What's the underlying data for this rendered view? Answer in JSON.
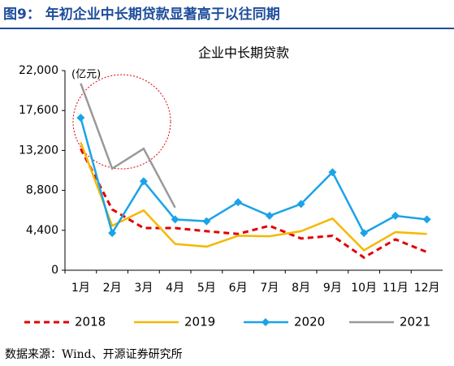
{
  "header": {
    "title": "图9：  年初企业中长期贷款显著高于以往同期"
  },
  "chart_data": {
    "type": "line",
    "title": "企业中长期贷款",
    "unit_label": "(亿元)",
    "categories": [
      "1月",
      "2月",
      "3月",
      "4月",
      "5月",
      "6月",
      "7月",
      "8月",
      "9月",
      "10月",
      "11月",
      "12月"
    ],
    "ylim": [
      0,
      22000
    ],
    "yticks": [
      0,
      {
        "value": 4400,
        "label": "4,400"
      },
      {
        "value": 8800,
        "label": "8,800"
      },
      {
        "value": 13200,
        "label": "13,200"
      },
      {
        "value": 17600,
        "label": "17,600"
      },
      {
        "value": 22000,
        "label": "22,000"
      }
    ],
    "series": [
      {
        "name": "2018",
        "color": "#e00000",
        "dash": true,
        "marker": false,
        "values": [
          13400,
          6700,
          4650,
          4650,
          4300,
          4000,
          4900,
          3500,
          3800,
          1400,
          3400,
          2000
        ]
      },
      {
        "name": "2019",
        "color": "#f5b800",
        "dash": false,
        "marker": false,
        "values": [
          14100,
          4900,
          6600,
          2900,
          2600,
          3800,
          3750,
          4300,
          5700,
          2200,
          4200,
          4000
        ]
      },
      {
        "name": "2020",
        "color": "#1aa3e8",
        "dash": false,
        "marker": true,
        "values": [
          16800,
          4100,
          9800,
          5600,
          5400,
          7500,
          6000,
          7300,
          10800,
          4100,
          6000,
          5600
        ]
      },
      {
        "name": "2021",
        "color": "#999999",
        "dash": false,
        "marker": false,
        "values": [
          20600,
          11200,
          13400,
          6900,
          null,
          null,
          null,
          null,
          null,
          null,
          null,
          null
        ]
      }
    ]
  },
  "footer": {
    "source": "数据来源：Wind、开源证券研究所"
  }
}
